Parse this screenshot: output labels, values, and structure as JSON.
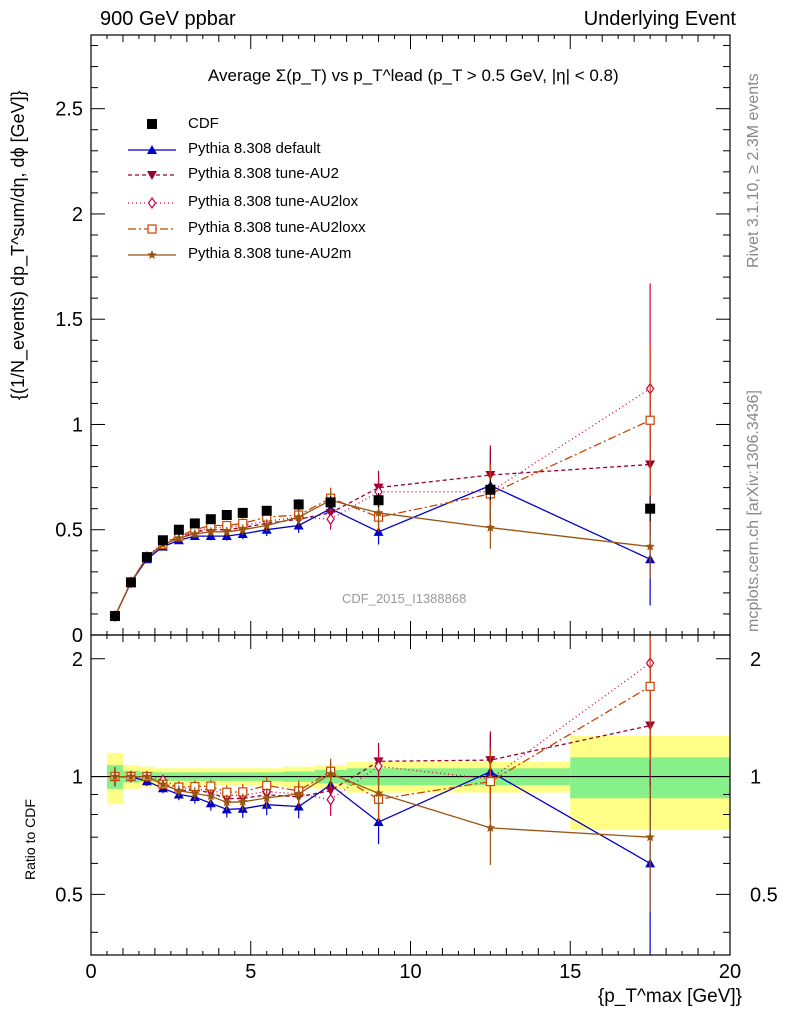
{
  "header": {
    "left": "900 GeV ppbar",
    "right": "Underlying Event"
  },
  "side": {
    "rivet": "Rivet 3.1.10, ≥ 2.3M events",
    "mcplots": "mcplots.cern.ch [arXiv:1306.3436]"
  },
  "chart_data": {
    "type": "scatter",
    "title": "Average Σ(p_T) vs p_T^lead (p_T > 0.5 GeV, |η| < 0.8)",
    "watermark": "CDF_2015_I1388868",
    "ylabel": "{(1/N_events) dp_T^sum/dη, dϕ [GeV]}",
    "xlabel": "{p_T^max [GeV]}",
    "ratio_ylabel": "Ratio to CDF",
    "xlim": [
      0,
      20
    ],
    "ylim": [
      0,
      2.85
    ],
    "ratio_ylim": [
      0.35,
      2.3
    ],
    "ratio_yscale": "log",
    "x_ticks": [
      "0",
      "5",
      "10",
      "15",
      "20"
    ],
    "y_ticks": [
      "0",
      "0.5",
      "1",
      "1.5",
      "2",
      "2.5"
    ],
    "ratio_y_ticks": [
      "0.5",
      "1",
      "2"
    ],
    "x": [
      0.75,
      1.25,
      1.75,
      2.25,
      2.75,
      3.25,
      3.75,
      4.25,
      4.75,
      5.5,
      6.5,
      7.5,
      9,
      12.5,
      17.5
    ],
    "x_err": [
      0.25,
      0.25,
      0.25,
      0.25,
      0.25,
      0.25,
      0.25,
      0.25,
      0.25,
      0.5,
      0.5,
      0.5,
      1,
      2.5,
      2.5
    ],
    "data": {
      "name": "CDF",
      "values": [
        0.09,
        0.25,
        0.37,
        0.45,
        0.5,
        0.53,
        0.55,
        0.57,
        0.58,
        0.59,
        0.62,
        0.63,
        0.64,
        0.69,
        0.6
      ],
      "errors": [
        0.005,
        0.008,
        0.01,
        0.012,
        0.013,
        0.014,
        0.015,
        0.016,
        0.017,
        0.02,
        0.025,
        0.03,
        0.035,
        0.05,
        0.06
      ],
      "band_stat": [
        0.07,
        0.035,
        0.03,
        0.025,
        0.025,
        0.025,
        0.025,
        0.025,
        0.025,
        0.025,
        0.03,
        0.04,
        0.05,
        0.05,
        0.12
      ],
      "band_tot": [
        0.15,
        0.07,
        0.06,
        0.05,
        0.05,
        0.05,
        0.05,
        0.05,
        0.05,
        0.05,
        0.06,
        0.07,
        0.09,
        0.09,
        0.27
      ]
    },
    "series": [
      {
        "name": "Pythia 8.308 default",
        "color": "#0000cc",
        "dash": "",
        "marker": "triangle-up",
        "values": [
          0.09,
          0.25,
          0.36,
          0.42,
          0.45,
          0.47,
          0.47,
          0.47,
          0.48,
          0.5,
          0.52,
          0.6,
          0.49,
          0.71,
          0.36
        ],
        "errors": [
          0.005,
          0.008,
          0.01,
          0.012,
          0.015,
          0.018,
          0.02,
          0.022,
          0.025,
          0.03,
          0.035,
          0.05,
          0.06,
          0.17,
          0.22
        ]
      },
      {
        "name": "Pythia 8.308 tune-AU2",
        "color": "#990033",
        "dash": "4,3",
        "marker": "triangle-down",
        "values": [
          0.09,
          0.25,
          0.37,
          0.43,
          0.46,
          0.49,
          0.5,
          0.5,
          0.51,
          0.53,
          0.55,
          0.58,
          0.7,
          0.76,
          0.81
        ],
        "errors": [
          0.005,
          0.008,
          0.01,
          0.012,
          0.015,
          0.018,
          0.02,
          0.022,
          0.025,
          0.03,
          0.035,
          0.05,
          0.08,
          0.14,
          0.34
        ]
      },
      {
        "name": "Pythia 8.308 tune-AU2lox",
        "color": "#cc0044",
        "dash": "1,3",
        "marker": "diamond-open",
        "values": [
          0.09,
          0.25,
          0.37,
          0.44,
          0.47,
          0.49,
          0.51,
          0.51,
          0.52,
          0.54,
          0.56,
          0.55,
          0.68,
          0.68,
          1.17
        ],
        "errors": [
          0.005,
          0.008,
          0.01,
          0.012,
          0.015,
          0.018,
          0.02,
          0.022,
          0.025,
          0.03,
          0.035,
          0.05,
          0.08,
          0.14,
          0.5
        ]
      },
      {
        "name": "Pythia 8.308 tune-AU2loxx",
        "color": "#cc4400",
        "dash": "8,3,2,3",
        "marker": "square-open",
        "values": [
          0.09,
          0.25,
          0.37,
          0.43,
          0.47,
          0.5,
          0.52,
          0.52,
          0.53,
          0.56,
          0.57,
          0.65,
          0.56,
          0.67,
          1.02
        ],
        "errors": [
          0.005,
          0.008,
          0.01,
          0.012,
          0.015,
          0.018,
          0.02,
          0.022,
          0.025,
          0.03,
          0.035,
          0.05,
          0.07,
          0.14,
          0.36
        ]
      },
      {
        "name": "Pythia 8.308 tune-AU2m",
        "color": "#995511",
        "dash": "",
        "marker": "star",
        "values": [
          0.09,
          0.25,
          0.37,
          0.43,
          0.46,
          0.48,
          0.49,
          0.49,
          0.5,
          0.52,
          0.56,
          0.64,
          0.58,
          0.51,
          0.42
        ],
        "errors": [
          0.005,
          0.008,
          0.01,
          0.012,
          0.015,
          0.018,
          0.02,
          0.022,
          0.025,
          0.03,
          0.035,
          0.05,
          0.06,
          0.1,
          0.15
        ]
      }
    ]
  }
}
